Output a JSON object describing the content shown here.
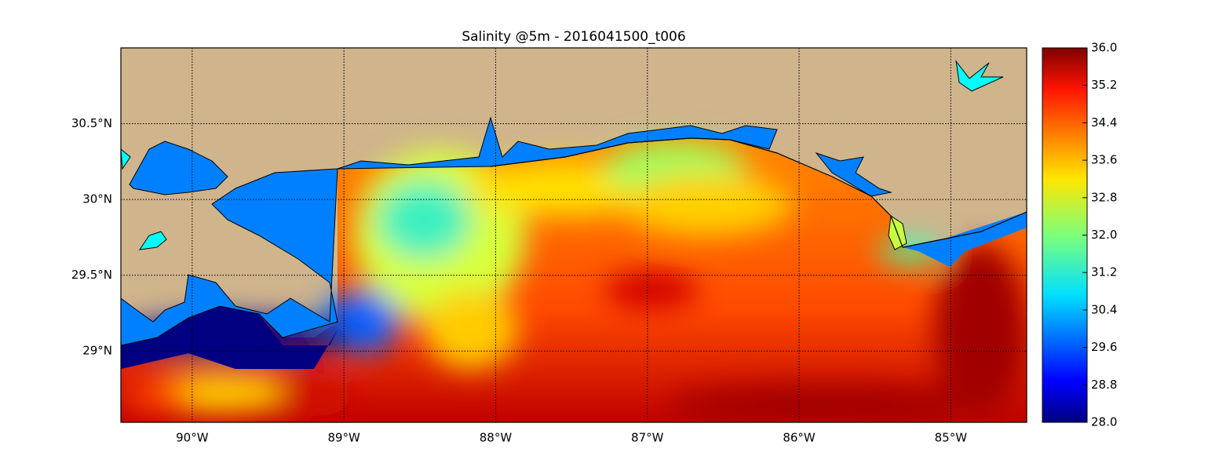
{
  "chart_data": {
    "type": "map",
    "title": "Salinity @5m - 2016041500_t006",
    "xlim": [
      -90.47,
      -84.5
    ],
    "ylim": [
      28.53,
      31.0
    ],
    "xticks": [
      {
        "value": -90,
        "label": "90°W"
      },
      {
        "value": -89,
        "label": "89°W"
      },
      {
        "value": -88,
        "label": "88°W"
      },
      {
        "value": -87,
        "label": "87°W"
      },
      {
        "value": -86,
        "label": "86°W"
      },
      {
        "value": -85,
        "label": "85°W"
      }
    ],
    "yticks": [
      {
        "value": 29,
        "label": "29°N"
      },
      {
        "value": 29.5,
        "label": "29.5°N"
      },
      {
        "value": 30,
        "label": "30°N"
      },
      {
        "value": 30.5,
        "label": "30.5°N"
      }
    ],
    "grid": true,
    "colorbar": {
      "colormap": "jet",
      "lim": [
        28,
        36
      ],
      "ticks": [
        {
          "value": 28,
          "label": "28.0"
        },
        28.8,
        29.6,
        30.4,
        31.2,
        {
          "value": 32,
          "label": "32.0"
        },
        32.8,
        33.6,
        34.4,
        35.2,
        {
          "value": 36,
          "label": "36.0"
        }
      ]
    }
  }
}
